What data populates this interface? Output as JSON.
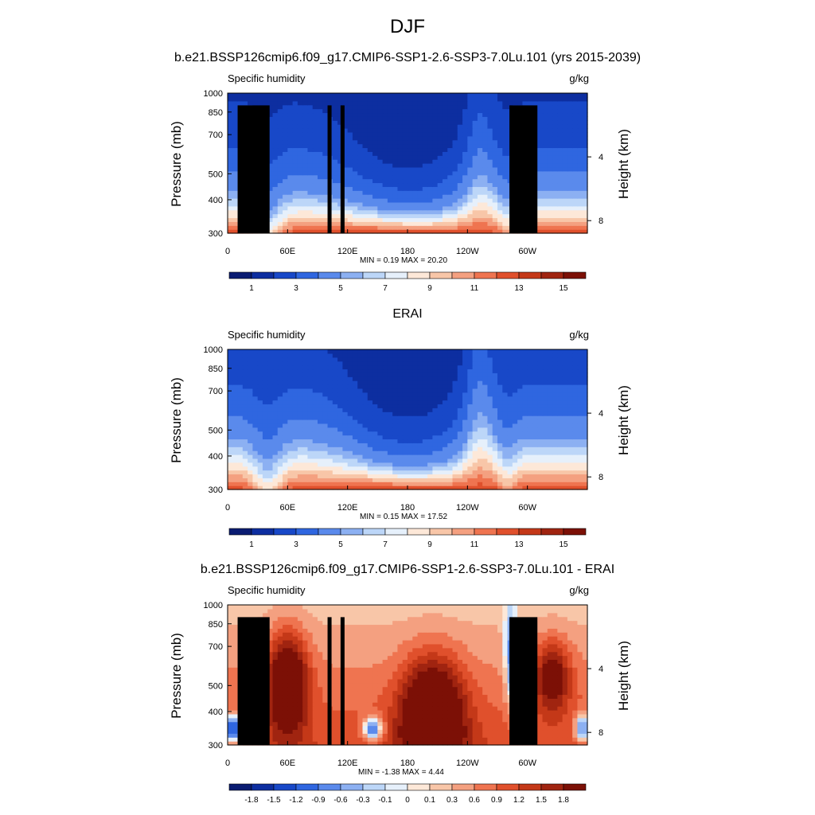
{
  "figure": {
    "title": "DJF"
  },
  "chart_data": [
    {
      "type": "heatmap",
      "panel_title": "b.e21.BSSP126cmip6.f09_g17.CMIP6-SSP1-2.6-SSP3-7.0Lu.101 (yrs 2015-2039)",
      "variable": "Specific humidity",
      "units": "g/kg",
      "ylabel": "Pressure (mb)",
      "ylabel_right": "Height (km)",
      "xlim": [
        0,
        360
      ],
      "ylim": [
        1000,
        300
      ],
      "x_ticks": [
        "0",
        "60E",
        "120E",
        "180",
        "120W",
        "60W"
      ],
      "y_ticks": [
        "300",
        "400",
        "500",
        "700",
        "850",
        "1000"
      ],
      "y_ticks_right": [
        "8",
        "4"
      ],
      "min_max_text": "MIN =   0.19  MAX =  20.20",
      "colorbar_labels": [
        "1",
        "3",
        "5",
        "7",
        "9",
        "11",
        "13",
        "15"
      ],
      "colors": [
        "#0a1c72",
        "#0d2ea0",
        "#1848c8",
        "#2f66e0",
        "#5a8aec",
        "#8cb0f2",
        "#bcd6f8",
        "#e6f0fb",
        "#fde8d8",
        "#f8c6a8",
        "#f4a080",
        "#ef7450",
        "#e0502c",
        "#c43818",
        "#a02410",
        "#7c1006"
      ]
    },
    {
      "type": "heatmap",
      "panel_title": "ERAI",
      "variable": "Specific humidity",
      "units": "g/kg",
      "ylabel": "Pressure (mb)",
      "ylabel_right": "Height (km)",
      "xlim": [
        0,
        360
      ],
      "ylim": [
        1000,
        300
      ],
      "x_ticks": [
        "0",
        "60E",
        "120E",
        "180",
        "120W",
        "60W"
      ],
      "y_ticks": [
        "300",
        "400",
        "500",
        "700",
        "850",
        "1000"
      ],
      "y_ticks_right": [
        "8",
        "4"
      ],
      "min_max_text": "MIN =   0.15  MAX =  17.52",
      "colorbar_labels": [
        "1",
        "3",
        "5",
        "7",
        "9",
        "11",
        "13",
        "15"
      ],
      "colors": [
        "#0a1c72",
        "#0d2ea0",
        "#1848c8",
        "#2f66e0",
        "#5a8aec",
        "#8cb0f2",
        "#bcd6f8",
        "#e6f0fb",
        "#fde8d8",
        "#f8c6a8",
        "#f4a080",
        "#ef7450",
        "#e0502c",
        "#c43818",
        "#a02410",
        "#7c1006"
      ]
    },
    {
      "type": "heatmap",
      "panel_title": "b.e21.BSSP126cmip6.f09_g17.CMIP6-SSP1-2.6-SSP3-7.0Lu.101 - ERAI",
      "variable": "Specific humidity",
      "units": "g/kg",
      "ylabel": "Pressure (mb)",
      "ylabel_right": "Height (km)",
      "xlim": [
        0,
        360
      ],
      "ylim": [
        1000,
        300
      ],
      "x_ticks": [
        "0",
        "60E",
        "120E",
        "180",
        "120W",
        "60W"
      ],
      "y_ticks": [
        "300",
        "400",
        "500",
        "700",
        "850",
        "1000"
      ],
      "y_ticks_right": [
        "8",
        "4"
      ],
      "min_max_text": "MIN =  -1.38  MAX =   4.44",
      "colorbar_labels": [
        "-1.8",
        "-1.5",
        "-1.2",
        "-0.9",
        "-0.6",
        "-0.3",
        "-0.1",
        "0",
        "0.1",
        "0.3",
        "0.6",
        "0.9",
        "1.2",
        "1.5",
        "1.8"
      ],
      "colors": [
        "#0a1c72",
        "#0d2ea0",
        "#1848c8",
        "#2f66e0",
        "#5a8aec",
        "#8cb0f2",
        "#bcd6f8",
        "#e6f0fb",
        "#fde8d8",
        "#f8c6a8",
        "#f4a080",
        "#ef7450",
        "#e0502c",
        "#c43818",
        "#a02410",
        "#7c1006"
      ]
    }
  ]
}
